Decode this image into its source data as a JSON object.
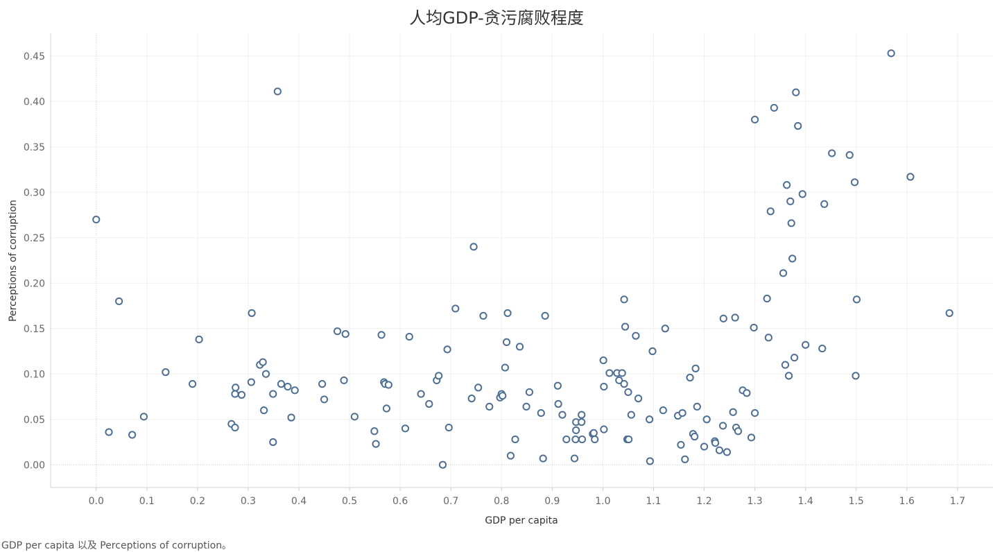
{
  "chart_data": {
    "type": "scatter",
    "title": "人均GDP-贪污腐败程度",
    "xlabel": "GDP per capita",
    "ylabel": "Perceptions of corruption",
    "caption": "GDP per capita 以及 Perceptions of corruption。",
    "xlim": [
      -0.09,
      1.77
    ],
    "ylim": [
      -0.025,
      0.475
    ],
    "xticks": [
      "0.0",
      "0.1",
      "0.2",
      "0.3",
      "0.4",
      "0.5",
      "0.6",
      "0.7",
      "0.8",
      "0.9",
      "1.0",
      "1.1",
      "1.2",
      "1.3",
      "1.4",
      "1.5",
      "1.6",
      "1.7"
    ],
    "xtick_values": [
      0,
      0.1,
      0.2,
      0.3,
      0.4,
      0.5,
      0.6,
      0.7,
      0.8,
      0.9,
      1.0,
      1.1,
      1.2,
      1.3,
      1.4,
      1.5,
      1.6,
      1.7
    ],
    "yticks": [
      "0.00",
      "0.05",
      "0.10",
      "0.15",
      "0.20",
      "0.25",
      "0.30",
      "0.35",
      "0.40",
      "0.45"
    ],
    "ytick_values": [
      0,
      0.05,
      0.1,
      0.15,
      0.2,
      0.25,
      0.3,
      0.35,
      0.4,
      0.45
    ],
    "grid": true,
    "marker_color": "#4e6f94",
    "points": [
      [
        0.0,
        0.27
      ],
      [
        0.045,
        0.18
      ],
      [
        0.025,
        0.036
      ],
      [
        0.071,
        0.033
      ],
      [
        0.094,
        0.053
      ],
      [
        0.137,
        0.102
      ],
      [
        0.19,
        0.089
      ],
      [
        0.203,
        0.138
      ],
      [
        0.267,
        0.045
      ],
      [
        0.274,
        0.041
      ],
      [
        0.274,
        0.078
      ],
      [
        0.275,
        0.085
      ],
      [
        0.287,
        0.077
      ],
      [
        0.306,
        0.091
      ],
      [
        0.307,
        0.167
      ],
      [
        0.323,
        0.11
      ],
      [
        0.329,
        0.113
      ],
      [
        0.331,
        0.06
      ],
      [
        0.335,
        0.1
      ],
      [
        0.349,
        0.078
      ],
      [
        0.349,
        0.025
      ],
      [
        0.358,
        0.411
      ],
      [
        0.365,
        0.089
      ],
      [
        0.378,
        0.086
      ],
      [
        0.385,
        0.052
      ],
      [
        0.392,
        0.082
      ],
      [
        0.446,
        0.089
      ],
      [
        0.45,
        0.072
      ],
      [
        0.476,
        0.147
      ],
      [
        0.489,
        0.093
      ],
      [
        0.492,
        0.144
      ],
      [
        0.51,
        0.053
      ],
      [
        0.549,
        0.037
      ],
      [
        0.552,
        0.023
      ],
      [
        0.563,
        0.143
      ],
      [
        0.568,
        0.091
      ],
      [
        0.57,
        0.089
      ],
      [
        0.573,
        0.062
      ],
      [
        0.577,
        0.088
      ],
      [
        0.61,
        0.04
      ],
      [
        0.618,
        0.141
      ],
      [
        0.641,
        0.078
      ],
      [
        0.657,
        0.067
      ],
      [
        0.672,
        0.093
      ],
      [
        0.676,
        0.098
      ],
      [
        0.684,
        0.0
      ],
      [
        0.693,
        0.127
      ],
      [
        0.696,
        0.041
      ],
      [
        0.709,
        0.172
      ],
      [
        0.741,
        0.073
      ],
      [
        0.745,
        0.24
      ],
      [
        0.754,
        0.085
      ],
      [
        0.764,
        0.164
      ],
      [
        0.776,
        0.064
      ],
      [
        0.797,
        0.074
      ],
      [
        0.8,
        0.078
      ],
      [
        0.802,
        0.076
      ],
      [
        0.807,
        0.107
      ],
      [
        0.81,
        0.135
      ],
      [
        0.812,
        0.167
      ],
      [
        0.818,
        0.01
      ],
      [
        0.827,
        0.028
      ],
      [
        0.836,
        0.13
      ],
      [
        0.849,
        0.064
      ],
      [
        0.855,
        0.08
      ],
      [
        0.878,
        0.057
      ],
      [
        0.882,
        0.007
      ],
      [
        0.886,
        0.164
      ],
      [
        0.911,
        0.087
      ],
      [
        0.912,
        0.067
      ],
      [
        0.92,
        0.055
      ],
      [
        0.928,
        0.028
      ],
      [
        0.944,
        0.007
      ],
      [
        0.946,
        0.028
      ],
      [
        0.947,
        0.047
      ],
      [
        0.947,
        0.038
      ],
      [
        0.958,
        0.055
      ],
      [
        0.958,
        0.047
      ],
      [
        0.959,
        0.028
      ],
      [
        0.98,
        0.034
      ],
      [
        0.982,
        0.035
      ],
      [
        0.984,
        0.028
      ],
      [
        1.001,
        0.115
      ],
      [
        1.002,
        0.086
      ],
      [
        1.002,
        0.039
      ],
      [
        1.013,
        0.101
      ],
      [
        1.028,
        0.101
      ],
      [
        1.032,
        0.093
      ],
      [
        1.038,
        0.101
      ],
      [
        1.042,
        0.089
      ],
      [
        1.042,
        0.182
      ],
      [
        1.044,
        0.152
      ],
      [
        1.048,
        0.028
      ],
      [
        1.05,
        0.08
      ],
      [
        1.051,
        0.028
      ],
      [
        1.056,
        0.055
      ],
      [
        1.065,
        0.142
      ],
      [
        1.07,
        0.073
      ],
      [
        1.092,
        0.05
      ],
      [
        1.093,
        0.004
      ],
      [
        1.098,
        0.125
      ],
      [
        1.119,
        0.06
      ],
      [
        1.123,
        0.15
      ],
      [
        1.148,
        0.054
      ],
      [
        1.154,
        0.022
      ],
      [
        1.157,
        0.057
      ],
      [
        1.162,
        0.006
      ],
      [
        1.172,
        0.096
      ],
      [
        1.178,
        0.034
      ],
      [
        1.181,
        0.031
      ],
      [
        1.183,
        0.106
      ],
      [
        1.186,
        0.064
      ],
      [
        1.2,
        0.02
      ],
      [
        1.205,
        0.05
      ],
      [
        1.221,
        0.026
      ],
      [
        1.222,
        0.024
      ],
      [
        1.23,
        0.016
      ],
      [
        1.237,
        0.043
      ],
      [
        1.238,
        0.161
      ],
      [
        1.245,
        0.014
      ],
      [
        1.257,
        0.058
      ],
      [
        1.261,
        0.162
      ],
      [
        1.263,
        0.041
      ],
      [
        1.267,
        0.037
      ],
      [
        1.276,
        0.082
      ],
      [
        1.284,
        0.079
      ],
      [
        1.293,
        0.03
      ],
      [
        1.298,
        0.151
      ],
      [
        1.3,
        0.38
      ],
      [
        1.3,
        0.057
      ],
      [
        1.324,
        0.183
      ],
      [
        1.327,
        0.14
      ],
      [
        1.331,
        0.279
      ],
      [
        1.338,
        0.393
      ],
      [
        1.356,
        0.211
      ],
      [
        1.36,
        0.11
      ],
      [
        1.363,
        0.308
      ],
      [
        1.367,
        0.098
      ],
      [
        1.37,
        0.29
      ],
      [
        1.372,
        0.266
      ],
      [
        1.374,
        0.227
      ],
      [
        1.378,
        0.118
      ],
      [
        1.381,
        0.41
      ],
      [
        1.385,
        0.373
      ],
      [
        1.394,
        0.298
      ],
      [
        1.4,
        0.132
      ],
      [
        1.433,
        0.128
      ],
      [
        1.437,
        0.287
      ],
      [
        1.452,
        0.343
      ],
      [
        1.487,
        0.341
      ],
      [
        1.497,
        0.311
      ],
      [
        1.499,
        0.098
      ],
      [
        1.501,
        0.182
      ],
      [
        1.569,
        0.453
      ],
      [
        1.607,
        0.317
      ],
      [
        1.684,
        0.167
      ]
    ]
  }
}
